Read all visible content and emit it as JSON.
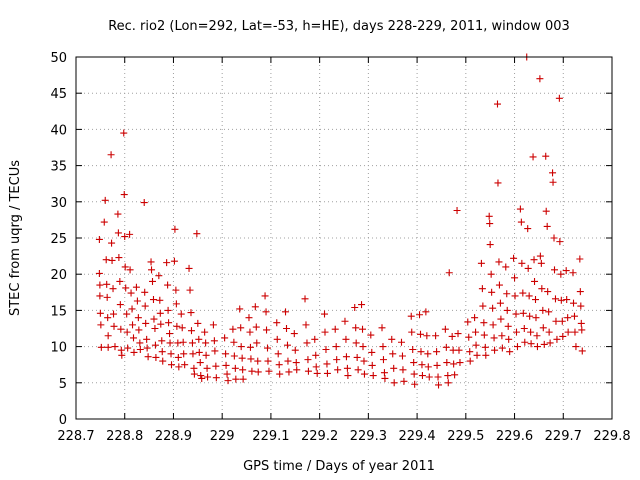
{
  "chart_data": {
    "type": "scatter",
    "title": "Rec. rio2 (Lon=292, Lat=-53, h=HE), days 228-229, 2011, window 003",
    "xlabel": "GPS time / Days of year 2011",
    "ylabel": "STEC from uqrg / TECUs",
    "xlim": [
      228.7,
      229.8
    ],
    "ylim": [
      0,
      50
    ],
    "xticks": [
      "228.7",
      "228.8",
      "228.9",
      "229",
      "229.1",
      "229.2",
      "229.3",
      "229.4",
      "229.5",
      "229.6",
      "229.7",
      "229.8"
    ],
    "yticks": [
      "0",
      "5",
      "10",
      "15",
      "20",
      "25",
      "30",
      "35",
      "40",
      "45",
      "50"
    ],
    "grid": true,
    "marker": "+",
    "color": "#cc0000",
    "points": [
      [
        228.748,
        24.8
      ],
      [
        228.748,
        20.1
      ],
      [
        228.749,
        18.5
      ],
      [
        228.749,
        17.0
      ],
      [
        228.75,
        14.6
      ],
      [
        228.751,
        13.0
      ],
      [
        228.752,
        9.9
      ],
      [
        228.758,
        27.2
      ],
      [
        228.76,
        30.2
      ],
      [
        228.762,
        22.0
      ],
      [
        228.763,
        18.6
      ],
      [
        228.764,
        16.8
      ],
      [
        228.765,
        14.0
      ],
      [
        228.766,
        11.5
      ],
      [
        228.766,
        9.9
      ],
      [
        228.772,
        36.5
      ],
      [
        228.773,
        24.3
      ],
      [
        228.774,
        21.9
      ],
      [
        228.776,
        18.0
      ],
      [
        228.777,
        14.5
      ],
      [
        228.778,
        12.8
      ],
      [
        228.78,
        10.0
      ],
      [
        228.786,
        28.3
      ],
      [
        228.787,
        25.7
      ],
      [
        228.788,
        22.3
      ],
      [
        228.79,
        19.0
      ],
      [
        228.791,
        15.8
      ],
      [
        228.792,
        12.4
      ],
      [
        228.793,
        9.5
      ],
      [
        228.794,
        8.8
      ],
      [
        228.798,
        39.5
      ],
      [
        228.799,
        31.0
      ],
      [
        228.8,
        25.2
      ],
      [
        228.801,
        21.0
      ],
      [
        228.802,
        18.1
      ],
      [
        228.804,
        14.5
      ],
      [
        228.805,
        12.0
      ],
      [
        228.806,
        9.8
      ],
      [
        228.81,
        25.5
      ],
      [
        228.811,
        20.6
      ],
      [
        228.813,
        17.4
      ],
      [
        228.815,
        15.2
      ],
      [
        228.816,
        13.0
      ],
      [
        228.818,
        11.2
      ],
      [
        228.819,
        9.2
      ],
      [
        228.824,
        18.2
      ],
      [
        228.826,
        16.3
      ],
      [
        228.828,
        14.0
      ],
      [
        228.829,
        12.3
      ],
      [
        228.831,
        10.5
      ],
      [
        228.832,
        9.6
      ],
      [
        228.84,
        29.9
      ],
      [
        228.841,
        17.5
      ],
      [
        228.842,
        15.6
      ],
      [
        228.843,
        13.2
      ],
      [
        228.845,
        11.0
      ],
      [
        228.846,
        9.8
      ],
      [
        228.848,
        8.6
      ],
      [
        228.854,
        21.7
      ],
      [
        228.855,
        20.6
      ],
      [
        228.857,
        19.0
      ],
      [
        228.859,
        16.5
      ],
      [
        228.86,
        13.8
      ],
      [
        228.862,
        12.5
      ],
      [
        228.863,
        10.2
      ],
      [
        228.864,
        8.5
      ],
      [
        228.87,
        19.8
      ],
      [
        228.872,
        16.4
      ],
      [
        228.873,
        14.6
      ],
      [
        228.874,
        13.1
      ],
      [
        228.876,
        10.8
      ],
      [
        228.877,
        9.3
      ],
      [
        228.878,
        8.0
      ],
      [
        228.886,
        21.6
      ],
      [
        228.888,
        18.5
      ],
      [
        228.889,
        15.0
      ],
      [
        228.89,
        13.3
      ],
      [
        228.892,
        11.8
      ],
      [
        228.893,
        10.5
      ],
      [
        228.895,
        9.0
      ],
      [
        228.896,
        7.5
      ],
      [
        228.902,
        21.8
      ],
      [
        228.903,
        26.2
      ],
      [
        228.905,
        17.8
      ],
      [
        228.906,
        15.9
      ],
      [
        228.907,
        12.8
      ],
      [
        228.909,
        10.5
      ],
      [
        228.91,
        8.5
      ],
      [
        228.911,
        7.2
      ],
      [
        228.916,
        14.5
      ],
      [
        228.918,
        12.6
      ],
      [
        228.92,
        10.6
      ],
      [
        228.921,
        9.0
      ],
      [
        228.923,
        7.5
      ],
      [
        228.932,
        20.8
      ],
      [
        228.934,
        17.8
      ],
      [
        228.936,
        14.7
      ],
      [
        228.937,
        12.2
      ],
      [
        228.939,
        10.5
      ],
      [
        228.94,
        9.0
      ],
      [
        228.942,
        7.0
      ],
      [
        228.943,
        6.2
      ],
      [
        228.948,
        25.6
      ],
      [
        228.95,
        13.2
      ],
      [
        228.952,
        11.0
      ],
      [
        228.953,
        9.2
      ],
      [
        228.955,
        7.8
      ],
      [
        228.956,
        6.0
      ],
      [
        228.958,
        5.6
      ],
      [
        228.964,
        12.0
      ],
      [
        228.966,
        10.5
      ],
      [
        228.967,
        8.8
      ],
      [
        228.969,
        7.0
      ],
      [
        228.97,
        5.8
      ],
      [
        228.982,
        13.0
      ],
      [
        228.984,
        10.8
      ],
      [
        228.985,
        9.4
      ],
      [
        228.987,
        7.3
      ],
      [
        228.988,
        5.7
      ],
      [
        229.005,
        11.2
      ],
      [
        229.007,
        9.0
      ],
      [
        229.008,
        7.4
      ],
      [
        229.01,
        6.2
      ],
      [
        229.012,
        5.3
      ],
      [
        229.022,
        12.4
      ],
      [
        229.024,
        10.6
      ],
      [
        229.025,
        8.7
      ],
      [
        229.027,
        7.0
      ],
      [
        229.028,
        5.5
      ],
      [
        229.036,
        15.2
      ],
      [
        229.038,
        12.6
      ],
      [
        229.039,
        10.0
      ],
      [
        229.041,
        8.4
      ],
      [
        229.042,
        6.8
      ],
      [
        229.043,
        5.5
      ],
      [
        229.055,
        14.0
      ],
      [
        229.057,
        12.0
      ],
      [
        229.058,
        9.9
      ],
      [
        229.059,
        8.3
      ],
      [
        229.061,
        6.6
      ],
      [
        229.068,
        15.5
      ],
      [
        229.07,
        12.7
      ],
      [
        229.071,
        10.5
      ],
      [
        229.073,
        8.0
      ],
      [
        229.074,
        6.5
      ],
      [
        229.088,
        17.0
      ],
      [
        229.09,
        14.8
      ],
      [
        229.091,
        12.3
      ],
      [
        229.093,
        9.8
      ],
      [
        229.094,
        8.0
      ],
      [
        229.096,
        6.6
      ],
      [
        229.112,
        13.3
      ],
      [
        229.113,
        11.0
      ],
      [
        229.115,
        9.0
      ],
      [
        229.117,
        7.5
      ],
      [
        229.118,
        6.2
      ],
      [
        229.13,
        14.8
      ],
      [
        229.132,
        12.5
      ],
      [
        229.134,
        10.2
      ],
      [
        229.135,
        8.0
      ],
      [
        229.137,
        6.5
      ],
      [
        229.148,
        11.8
      ],
      [
        229.15,
        9.5
      ],
      [
        229.152,
        7.8
      ],
      [
        229.153,
        6.8
      ],
      [
        229.17,
        16.6
      ],
      [
        229.172,
        13.0
      ],
      [
        229.174,
        10.5
      ],
      [
        229.176,
        8.2
      ],
      [
        229.177,
        6.6
      ],
      [
        229.19,
        11.0
      ],
      [
        229.192,
        8.8
      ],
      [
        229.193,
        7.2
      ],
      [
        229.195,
        6.3
      ],
      [
        229.21,
        14.5
      ],
      [
        229.211,
        12.0
      ],
      [
        229.213,
        9.6
      ],
      [
        229.215,
        7.6
      ],
      [
        229.216,
        6.3
      ],
      [
        229.232,
        12.4
      ],
      [
        229.234,
        10.0
      ],
      [
        229.235,
        8.2
      ],
      [
        229.237,
        6.8
      ],
      [
        229.252,
        13.5
      ],
      [
        229.254,
        11.0
      ],
      [
        229.255,
        8.6
      ],
      [
        229.257,
        7.0
      ],
      [
        229.258,
        6.0
      ],
      [
        229.272,
        15.4
      ],
      [
        229.274,
        12.6
      ],
      [
        229.275,
        10.5
      ],
      [
        229.277,
        8.5
      ],
      [
        229.279,
        6.8
      ],
      [
        229.286,
        15.8
      ],
      [
        229.288,
        12.4
      ],
      [
        229.289,
        10.0
      ],
      [
        229.291,
        8.0
      ],
      [
        229.292,
        6.2
      ],
      [
        229.305,
        11.6
      ],
      [
        229.307,
        9.2
      ],
      [
        229.308,
        7.4
      ],
      [
        229.31,
        6.0
      ],
      [
        229.328,
        12.6
      ],
      [
        229.33,
        10.0
      ],
      [
        229.331,
        8.2
      ],
      [
        229.333,
        6.4
      ],
      [
        229.334,
        5.6
      ],
      [
        229.348,
        11.0
      ],
      [
        229.35,
        9.0
      ],
      [
        229.352,
        7.0
      ],
      [
        229.353,
        5.0
      ],
      [
        229.368,
        10.6
      ],
      [
        229.37,
        8.7
      ],
      [
        229.371,
        6.8
      ],
      [
        229.373,
        5.2
      ],
      [
        229.388,
        14.2
      ],
      [
        229.389,
        12.0
      ],
      [
        229.391,
        9.6
      ],
      [
        229.393,
        7.8
      ],
      [
        229.394,
        6.2
      ],
      [
        229.395,
        4.8
      ],
      [
        229.405,
        14.4
      ],
      [
        229.407,
        11.7
      ],
      [
        229.408,
        9.3
      ],
      [
        229.41,
        7.5
      ],
      [
        229.411,
        6.0
      ],
      [
        229.418,
        14.8
      ],
      [
        229.42,
        11.5
      ],
      [
        229.422,
        9.0
      ],
      [
        229.423,
        7.2
      ],
      [
        229.425,
        5.8
      ],
      [
        229.438,
        11.5
      ],
      [
        229.44,
        9.3
      ],
      [
        229.441,
        7.4
      ],
      [
        229.443,
        5.8
      ],
      [
        229.444,
        4.7
      ],
      [
        229.458,
        12.4
      ],
      [
        229.46,
        9.9
      ],
      [
        229.461,
        7.8
      ],
      [
        229.463,
        6.0
      ],
      [
        229.464,
        5.0
      ],
      [
        229.466,
        20.2
      ],
      [
        229.472,
        11.4
      ],
      [
        229.474,
        9.5
      ],
      [
        229.475,
        7.6
      ],
      [
        229.477,
        6.1
      ],
      [
        229.482,
        28.8
      ],
      [
        229.484,
        11.8
      ],
      [
        229.486,
        9.5
      ],
      [
        229.488,
        7.8
      ],
      [
        229.504,
        13.4
      ],
      [
        229.506,
        11.3
      ],
      [
        229.508,
        9.3
      ],
      [
        229.509,
        8.0
      ],
      [
        229.518,
        14.0
      ],
      [
        229.52,
        12.0
      ],
      [
        229.521,
        10.2
      ],
      [
        229.523,
        8.8
      ],
      [
        229.532,
        21.5
      ],
      [
        229.534,
        18.0
      ],
      [
        229.535,
        15.6
      ],
      [
        229.537,
        13.3
      ],
      [
        229.538,
        11.6
      ],
      [
        229.54,
        9.9
      ],
      [
        229.541,
        8.8
      ],
      [
        229.548,
        28.0
      ],
      [
        229.549,
        27.0
      ],
      [
        229.55,
        24.1
      ],
      [
        229.552,
        20.0
      ],
      [
        229.553,
        17.5
      ],
      [
        229.555,
        15.3
      ],
      [
        229.556,
        13.0
      ],
      [
        229.558,
        11.2
      ],
      [
        229.559,
        9.5
      ],
      [
        229.565,
        43.5
      ],
      [
        229.566,
        32.6
      ],
      [
        229.568,
        21.7
      ],
      [
        229.569,
        18.5
      ],
      [
        229.571,
        16.0
      ],
      [
        229.572,
        13.8
      ],
      [
        229.574,
        11.5
      ],
      [
        229.575,
        9.8
      ],
      [
        229.582,
        21.0
      ],
      [
        229.584,
        17.3
      ],
      [
        229.585,
        15.0
      ],
      [
        229.587,
        12.8
      ],
      [
        229.588,
        11.0
      ],
      [
        229.59,
        9.3
      ],
      [
        229.598,
        22.2
      ],
      [
        229.6,
        19.5
      ],
      [
        229.601,
        17.0
      ],
      [
        229.603,
        14.5
      ],
      [
        229.604,
        12.0
      ],
      [
        229.606,
        10.0
      ],
      [
        229.612,
        29.0
      ],
      [
        229.614,
        27.2
      ],
      [
        229.615,
        21.5
      ],
      [
        229.617,
        17.4
      ],
      [
        229.618,
        14.6
      ],
      [
        229.62,
        12.5
      ],
      [
        229.621,
        10.6
      ],
      [
        229.625,
        50.0
      ],
      [
        229.627,
        26.3
      ],
      [
        229.628,
        20.8
      ],
      [
        229.63,
        17.0
      ],
      [
        229.631,
        14.2
      ],
      [
        229.633,
        12.0
      ],
      [
        229.634,
        10.4
      ],
      [
        229.638,
        36.2
      ],
      [
        229.64,
        22.0
      ],
      [
        229.641,
        19.0
      ],
      [
        229.643,
        16.5
      ],
      [
        229.644,
        14.0
      ],
      [
        229.646,
        11.5
      ],
      [
        229.647,
        10.0
      ],
      [
        229.652,
        47.0
      ],
      [
        229.653,
        22.5
      ],
      [
        229.655,
        21.5
      ],
      [
        229.656,
        18.0
      ],
      [
        229.658,
        15.0
      ],
      [
        229.659,
        12.6
      ],
      [
        229.661,
        10.3
      ],
      [
        229.664,
        36.3
      ],
      [
        229.665,
        28.7
      ],
      [
        229.667,
        26.6
      ],
      [
        229.668,
        17.6
      ],
      [
        229.67,
        14.8
      ],
      [
        229.671,
        12.0
      ],
      [
        229.673,
        10.5
      ],
      [
        229.678,
        34.0
      ],
      [
        229.679,
        32.7
      ],
      [
        229.681,
        25.0
      ],
      [
        229.682,
        20.6
      ],
      [
        229.684,
        16.6
      ],
      [
        229.685,
        13.5
      ],
      [
        229.687,
        11.0
      ],
      [
        229.692,
        44.3
      ],
      [
        229.693,
        24.5
      ],
      [
        229.695,
        20.0
      ],
      [
        229.696,
        16.4
      ],
      [
        229.698,
        13.5
      ],
      [
        229.699,
        11.4
      ],
      [
        229.706,
        20.5
      ],
      [
        229.707,
        16.5
      ],
      [
        229.709,
        14.0
      ],
      [
        229.71,
        12.0
      ],
      [
        229.72,
        20.2
      ],
      [
        229.721,
        16.0
      ],
      [
        229.723,
        14.2
      ],
      [
        229.724,
        12.0
      ],
      [
        229.726,
        10.0
      ],
      [
        229.734,
        22.1
      ],
      [
        229.735,
        17.6
      ],
      [
        229.736,
        15.6
      ],
      [
        229.737,
        13.2
      ],
      [
        229.738,
        12.3
      ],
      [
        229.739,
        9.4
      ]
    ]
  }
}
